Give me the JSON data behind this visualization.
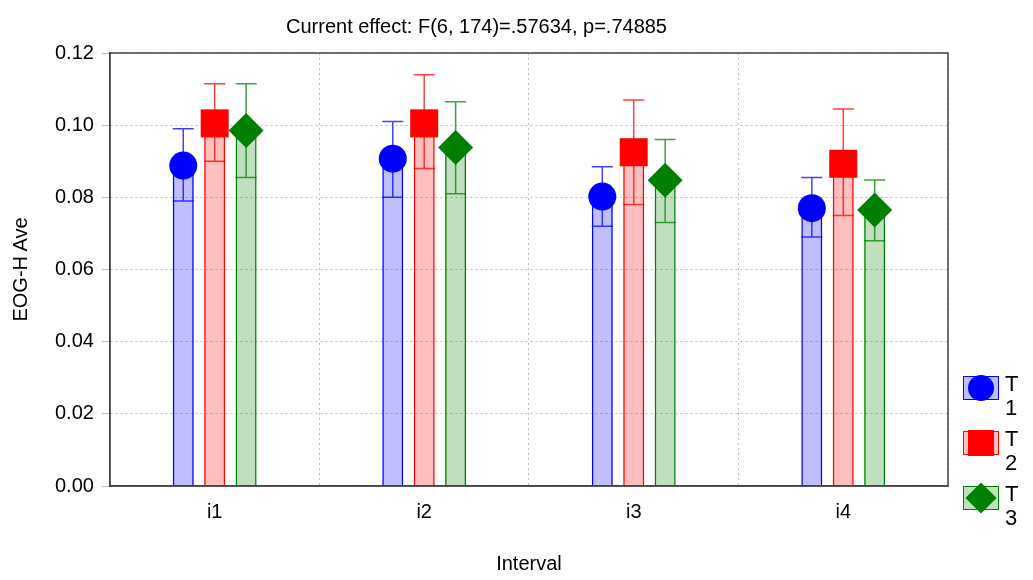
{
  "chart_data": {
    "type": "bar",
    "title": "Current effect: F(6, 174)=.57634, p=.74885",
    "xlabel": "Interval",
    "ylabel": "EOG-H Ave",
    "categories": [
      "i1",
      "i2",
      "i3",
      "i4"
    ],
    "series": [
      {
        "name": "T 1",
        "color": "#0000ff",
        "marker": "circle",
        "values": [
          0.0888,
          0.0907,
          0.0802,
          0.077
        ],
        "errors": [
          [
            0.079,
            0.099
          ],
          [
            0.08,
            0.101
          ],
          [
            0.072,
            0.0885
          ],
          [
            0.069,
            0.0855
          ]
        ]
      },
      {
        "name": "T 2",
        "color": "#ff0000",
        "marker": "square",
        "values": [
          0.1005,
          0.1005,
          0.0925,
          0.0893
        ],
        "errors": [
          [
            0.09,
            0.1115
          ],
          [
            0.088,
            0.114
          ],
          [
            0.078,
            0.107
          ],
          [
            0.075,
            0.1045
          ]
        ]
      },
      {
        "name": "T 3",
        "color": "#008000",
        "marker": "diamond",
        "values": [
          0.0985,
          0.0938,
          0.0847,
          0.0765
        ],
        "errors": [
          [
            0.0855,
            0.1115
          ],
          [
            0.081,
            0.1065
          ],
          [
            0.073,
            0.096
          ],
          [
            0.068,
            0.0848
          ]
        ]
      },
      {
        "type": "scatter",
        "color": "#0000ff",
        "marker": "circle",
        "x": [
          "i1",
          "i2",
          "i3",
          "i4"
        ],
        "values": [
          0.0888,
          0.0907,
          0.0802,
          0.077
        ]
      },
      {
        "type": "scatter",
        "color": "#ff0000",
        "marker": "square",
        "x": [
          "i1",
          "i2",
          "i3",
          "i4"
        ],
        "values": [
          0.1005,
          0.1005,
          0.0925,
          0.0893
        ]
      },
      {
        "type": "scatter",
        "color": "#008000",
        "marker": "diamond",
        "x": [
          "i1",
          "i2",
          "i3",
          "i4"
        ],
        "values": [
          0.0985,
          0.0938,
          0.0847,
          0.0765
        ]
      }
    ],
    "ylim": [
      0,
      0.12
    ],
    "yticks": [
      {
        "value": 0,
        "label": "0.00"
      },
      {
        "value": 0.02,
        "label": "0.02"
      },
      {
        "value": 0.04,
        "label": "0.04"
      },
      {
        "value": 0.06,
        "label": "0.06"
      },
      {
        "value": 0.08,
        "label": "0.08"
      },
      {
        "value": 0.1,
        "label": "0.10"
      },
      {
        "value": 0.12,
        "label": "0.12"
      }
    ],
    "grid": true,
    "legend": "bottom right"
  }
}
